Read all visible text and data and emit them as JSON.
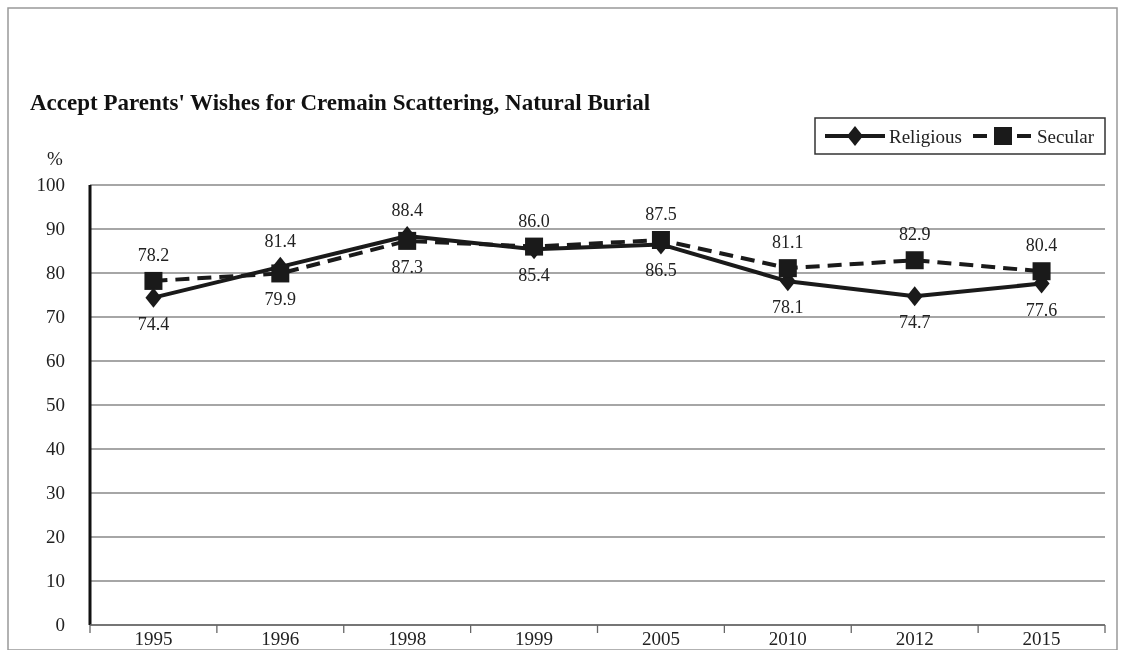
{
  "chart_data": {
    "type": "line",
    "title": "Accept Parents' Wishes for Cremain Scattering, Natural Burial",
    "ylabel": "%",
    "categories": [
      "1995",
      "1996",
      "1998",
      "1999",
      "2005",
      "2010",
      "2012",
      "2015"
    ],
    "series": [
      {
        "name": "Religious",
        "color": "#1a1a1a",
        "marker": "diamond",
        "line_style": "solid",
        "values": [
          74.4,
          81.4,
          88.4,
          85.4,
          86.5,
          78.1,
          74.7,
          77.6
        ],
        "value_labels": [
          "74.4",
          "81.4",
          "88.4",
          "85.4",
          "86.5",
          "78.1",
          "74.7",
          "77.6"
        ]
      },
      {
        "name": "Secular",
        "color": "#1a1a1a",
        "marker": "square",
        "line_style": "dashed",
        "values": [
          78.2,
          79.9,
          87.3,
          86.0,
          87.5,
          81.1,
          82.9,
          80.4
        ],
        "value_labels": [
          "78.2",
          "79.9",
          "87.3",
          "86.0",
          "87.5",
          "81.1",
          "82.9",
          "80.4"
        ]
      }
    ],
    "ylim": [
      0,
      100
    ],
    "yticks": [
      0,
      10,
      20,
      30,
      40,
      50,
      60,
      70,
      80,
      90,
      100
    ],
    "grid": "y",
    "legend": "top right"
  }
}
